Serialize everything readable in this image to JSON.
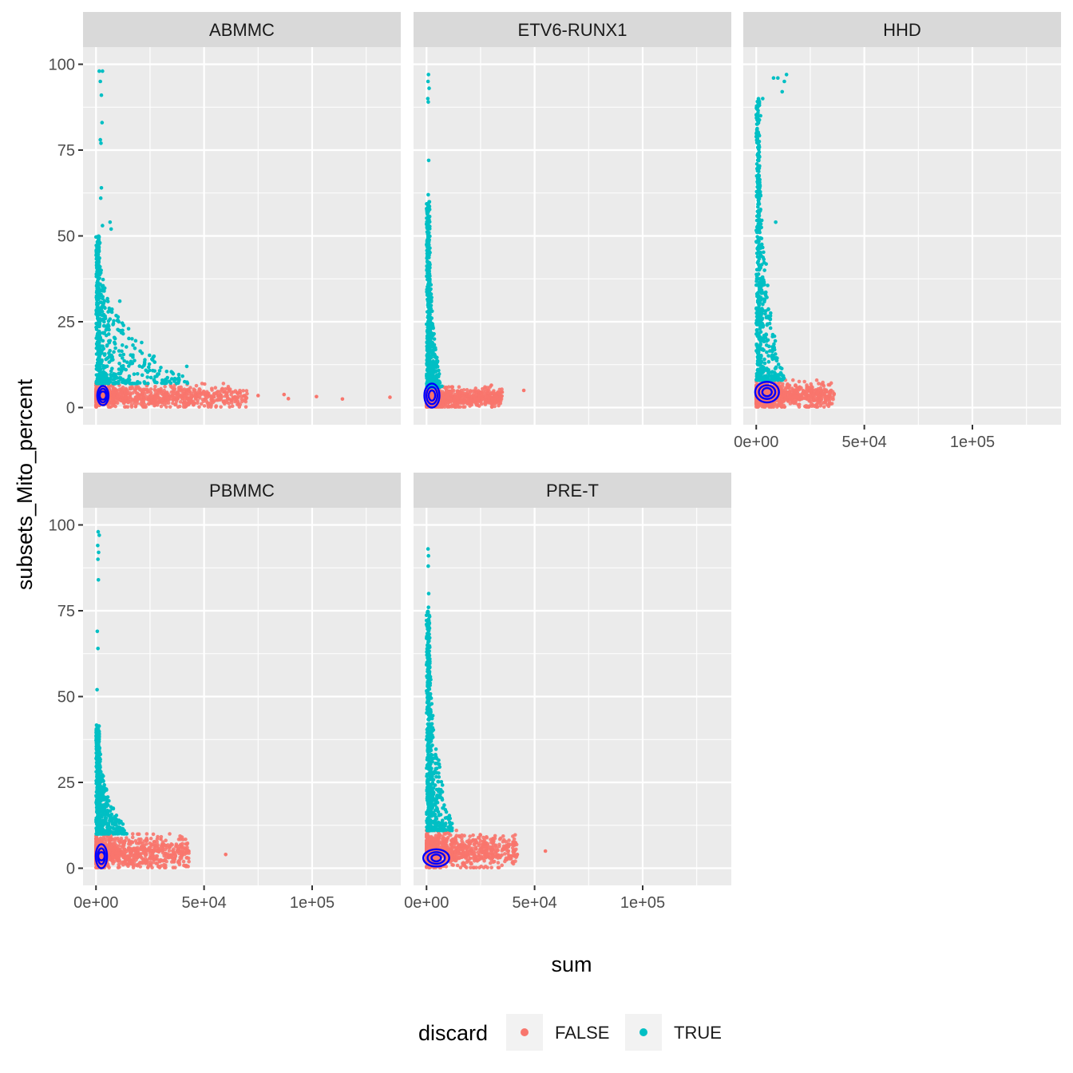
{
  "chart_data": {
    "type": "scatter",
    "facet_titles": [
      "ABMMC",
      "ETV6-RUNX1",
      "HHD",
      "PBMMC",
      "PRE-T"
    ],
    "xlabel": "sum",
    "ylabel": "subsets_Mito_percent",
    "xlim": [
      -6000,
      141000
    ],
    "ylim": [
      -5,
      105
    ],
    "x_ticks": [
      0,
      50000,
      100000
    ],
    "x_tick_labels": [
      "0e+00",
      "5e+04",
      "1e+05"
    ],
    "y_ticks": [
      0,
      25,
      50,
      75,
      100
    ],
    "y_tick_labels": [
      "0",
      "25",
      "50",
      "75",
      "100"
    ],
    "grid": true,
    "legend": {
      "title": "discard",
      "position": "bottom",
      "entries": [
        {
          "label": "FALSE",
          "color": "#F8766D"
        },
        {
          "label": "TRUE",
          "color": "#00BFC4"
        }
      ]
    },
    "contour_color": "#0000FF",
    "series": [
      {
        "facet": "ABMMC",
        "false_cloud": {
          "x_range": [
            0,
            70000
          ],
          "y_range": [
            0,
            7
          ]
        },
        "false_outliers": [
          [
            75000,
            3.5
          ],
          [
            87000,
            3.8
          ],
          [
            102000,
            3.2
          ],
          [
            114000,
            2.5
          ],
          [
            136000,
            3.0
          ],
          [
            89000,
            2.6
          ]
        ],
        "true_tail": {
          "x_range": [
            0,
            45000
          ],
          "y_range": [
            7,
            50
          ]
        },
        "true_outliers": [
          [
            1500,
            98
          ],
          [
            3000,
            98
          ],
          [
            2000,
            95
          ],
          [
            2500,
            91
          ],
          [
            2800,
            83
          ],
          [
            2000,
            78
          ],
          [
            2300,
            77
          ],
          [
            2500,
            64
          ],
          [
            2200,
            61
          ],
          [
            6500,
            54
          ],
          [
            7000,
            52
          ],
          [
            3000,
            53
          ],
          [
            1800,
            48
          ],
          [
            11000,
            31
          ],
          [
            42000,
            12
          ]
        ],
        "contours": [
          {
            "cx": 3200,
            "cy": 3.5,
            "rx": 2600,
            "ry": 2.8
          },
          {
            "cx": 3200,
            "cy": 3.5,
            "rx": 1800,
            "ry": 2.0
          },
          {
            "cx": 3200,
            "cy": 3.5,
            "rx": 1000,
            "ry": 1.2
          }
        ]
      },
      {
        "facet": "ETV6-RUNX1",
        "false_cloud": {
          "x_range": [
            0,
            35000
          ],
          "y_range": [
            0,
            6
          ]
        },
        "false_outliers": [
          [
            45000,
            5.0
          ],
          [
            35000,
            4.5
          ],
          [
            30000,
            6.5
          ]
        ],
        "true_tail": {
          "x_range": [
            0,
            6000
          ],
          "y_range": [
            6,
            60
          ]
        },
        "true_outliers": [
          [
            900,
            97
          ],
          [
            700,
            95
          ],
          [
            1200,
            93
          ],
          [
            600,
            90
          ],
          [
            800,
            89
          ],
          [
            1000,
            72
          ],
          [
            800,
            62
          ],
          [
            900,
            59
          ]
        ],
        "contours": [
          {
            "cx": 2500,
            "cy": 3.5,
            "rx": 3500,
            "ry": 3.5
          },
          {
            "cx": 2500,
            "cy": 3.5,
            "rx": 2500,
            "ry": 2.5
          },
          {
            "cx": 2500,
            "cy": 3.5,
            "rx": 1500,
            "ry": 1.5
          }
        ]
      },
      {
        "facet": "HHD",
        "false_cloud": {
          "x_range": [
            0,
            36000
          ],
          "y_range": [
            0,
            8
          ]
        },
        "false_outliers": [
          [
            36000,
            4.0
          ],
          [
            32000,
            5.0
          ]
        ],
        "true_tail": {
          "x_range": [
            0,
            12000
          ],
          "y_range": [
            8,
            90
          ]
        },
        "true_outliers": [
          [
            8000,
            96
          ],
          [
            10000,
            96
          ],
          [
            13000,
            95
          ],
          [
            14000,
            97
          ],
          [
            12000,
            92
          ],
          [
            3000,
            90
          ],
          [
            2000,
            85
          ],
          [
            9000,
            54
          ]
        ],
        "contours": [
          {
            "cx": 5000,
            "cy": 4.5,
            "rx": 5500,
            "ry": 3.0
          },
          {
            "cx": 5000,
            "cy": 4.5,
            "rx": 3800,
            "ry": 2.0
          },
          {
            "cx": 5000,
            "cy": 4.5,
            "rx": 2200,
            "ry": 1.2
          }
        ]
      },
      {
        "facet": "PBMMC",
        "false_cloud": {
          "x_range": [
            0,
            43000
          ],
          "y_range": [
            0,
            10
          ]
        },
        "false_outliers": [
          [
            60000,
            4.0
          ],
          [
            42000,
            5.0
          ],
          [
            30000,
            8.5
          ]
        ],
        "true_tail": {
          "x_range": [
            0,
            14000
          ],
          "y_range": [
            10,
            42
          ]
        },
        "true_outliers": [
          [
            1000,
            98
          ],
          [
            1500,
            97
          ],
          [
            800,
            94
          ],
          [
            1200,
            92
          ],
          [
            900,
            90
          ],
          [
            1100,
            84
          ],
          [
            600,
            69
          ],
          [
            900,
            64
          ],
          [
            500,
            52
          ]
        ],
        "contours": [
          {
            "cx": 2500,
            "cy": 3.5,
            "rx": 2600,
            "ry": 3.5
          },
          {
            "cx": 2500,
            "cy": 3.5,
            "rx": 1700,
            "ry": 2.3
          },
          {
            "cx": 2500,
            "cy": 3.5,
            "rx": 900,
            "ry": 1.2
          }
        ]
      },
      {
        "facet": "PRE-T",
        "false_cloud": {
          "x_range": [
            0,
            42000
          ],
          "y_range": [
            0,
            11
          ]
        },
        "false_outliers": [
          [
            55000,
            5.0
          ],
          [
            42000,
            4.0
          ],
          [
            38000,
            7.0
          ]
        ],
        "true_tail": {
          "x_range": [
            0,
            12000
          ],
          "y_range": [
            11,
            75
          ]
        },
        "true_outliers": [
          [
            700,
            93
          ],
          [
            900,
            91
          ],
          [
            800,
            88
          ],
          [
            1000,
            80
          ],
          [
            900,
            76
          ],
          [
            1100,
            72
          ],
          [
            800,
            68
          ]
        ],
        "contours": [
          {
            "cx": 4500,
            "cy": 3.0,
            "rx": 6000,
            "ry": 2.5
          },
          {
            "cx": 4500,
            "cy": 3.0,
            "rx": 4000,
            "ry": 1.7
          },
          {
            "cx": 4500,
            "cy": 3.0,
            "rx": 2200,
            "ry": 1.0
          }
        ]
      }
    ]
  }
}
